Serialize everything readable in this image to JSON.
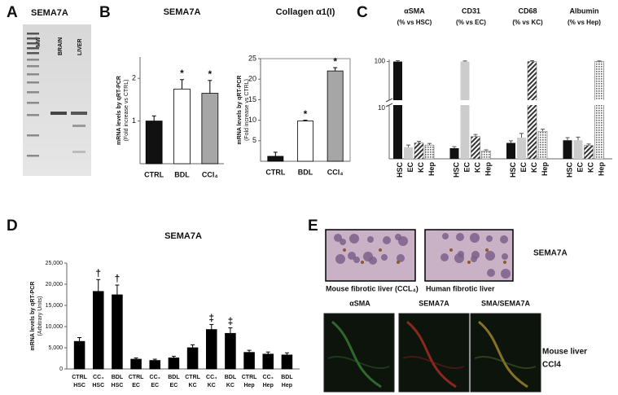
{
  "panel_labels": [
    "A",
    "B",
    "C",
    "D",
    "E"
  ],
  "gel": {
    "title": "SEMA7A",
    "lanes": [
      "MW",
      "BRAIN",
      "LIVER"
    ]
  },
  "chart_data": [
    {
      "type": "bar",
      "title": "SEMA7A",
      "ylabel": [
        "mRNA levels by qRT-PCR",
        "(Fold increase vs CTRL)"
      ],
      "categories": [
        "CTRL",
        "BDL",
        "CCl₄"
      ],
      "values": [
        1.0,
        1.75,
        1.65
      ],
      "errors": [
        0.12,
        0.22,
        0.3
      ],
      "colors": [
        "#111111",
        "#ffffff",
        "#a6a6a6"
      ],
      "annotations": [
        null,
        "*",
        "*"
      ],
      "ylim": [
        0,
        2.5
      ],
      "yticks": [
        1,
        2
      ]
    },
    {
      "type": "bar",
      "title": "Collagen α1(I)",
      "ylabel": [
        "mRNA levels by qRT-PCR",
        "(Fold increase vs CTRL)"
      ],
      "categories": [
        "CTRL",
        "BDL",
        "CCl₄"
      ],
      "values": [
        1.2,
        9.8,
        22
      ],
      "errors": [
        1.0,
        0.2,
        0.8
      ],
      "colors": [
        "#111111",
        "#ffffff",
        "#a6a6a6"
      ],
      "annotations": [
        null,
        "*",
        "*"
      ],
      "ylim": [
        0,
        25
      ],
      "yticks": [
        5,
        10,
        15,
        20,
        25
      ],
      "frame": true
    },
    {
      "type": "broken-bar",
      "categories": [
        "HSC",
        "EC",
        "KC",
        "Hep"
      ],
      "colors": [
        "#111111",
        "#cccccc",
        "#444444",
        "#777777"
      ],
      "patterns": [
        null,
        null,
        "diagonal",
        "dots"
      ],
      "ylim": [
        0,
        105
      ],
      "yticks": [
        10,
        100
      ],
      "panels": [
        {
          "title": "αSMA",
          "subtitle": "(% vs HSC)",
          "values": [
            100,
            2.2,
            3.0,
            2.6
          ],
          "errors": [
            2,
            0.4,
            0.3,
            0.3
          ]
        },
        {
          "title": "CD31",
          "subtitle": "(% vs EC)",
          "values": [
            2.0,
            100,
            4.2,
            1.5
          ],
          "errors": [
            0.3,
            1.5,
            0.4,
            0.2
          ]
        },
        {
          "title": "CD68",
          "subtitle": "(% vs KC)",
          "values": [
            3.0,
            4.0,
            100,
            5.2
          ],
          "errors": [
            0.4,
            0.8,
            2,
            0.4
          ]
        },
        {
          "title": "Albumin",
          "subtitle": "(% vs Hep)",
          "values": [
            3.5,
            3.5,
            2.5,
            100
          ],
          "errors": [
            0.5,
            0.6,
            0.3,
            1.5
          ]
        }
      ]
    },
    {
      "type": "bar",
      "title": "SEMA7A",
      "ylabel": [
        "mRNA levels by qRT-PCR",
        "(Arbitrary Units)"
      ],
      "categories": [
        [
          "CTRL",
          "HSC"
        ],
        [
          "CC₄",
          "HSC"
        ],
        [
          "BDL",
          "HSC"
        ],
        [
          "CTRL",
          "EC"
        ],
        [
          "CC₄",
          "EC"
        ],
        [
          "BDL",
          "EC"
        ],
        [
          "CTRL",
          "KC"
        ],
        [
          "CC₄",
          "KC"
        ],
        [
          "BDL",
          "KC"
        ],
        [
          "CTRL",
          "Hep"
        ],
        [
          "CC₄",
          "Hep"
        ],
        [
          "BDL",
          "Hep"
        ]
      ],
      "values": [
        6500,
        18300,
        17500,
        2300,
        2000,
        2600,
        5000,
        9300,
        8400,
        3900,
        3500,
        3300
      ],
      "errors": [
        900,
        2800,
        2300,
        300,
        300,
        400,
        700,
        1200,
        1300,
        500,
        500,
        500
      ],
      "color": "#000000",
      "annotations": [
        null,
        "†",
        "†",
        null,
        null,
        null,
        null,
        "‡",
        "‡",
        null,
        null,
        null
      ],
      "ylim": [
        0,
        25000
      ],
      "yticks": [
        0,
        {
          "value": 5000,
          "label": "5,000"
        },
        {
          "value": 10000,
          "label": "10,000"
        },
        {
          "value": 15000,
          "label": "15,000"
        },
        {
          "value": 20000,
          "label": "20,000"
        },
        {
          "value": 25000,
          "label": "25,000"
        }
      ]
    }
  ],
  "micrographs": {
    "top": [
      "Mouse fibrotic liver (CCL₄)",
      "Human fibrotic liver"
    ],
    "top_label": "SEMA7A",
    "bottom": [
      "αSMA",
      "SEMA7A",
      "SMA/SEMA7A"
    ],
    "bottom_label": [
      "Mouse liver",
      "CCl4"
    ]
  }
}
